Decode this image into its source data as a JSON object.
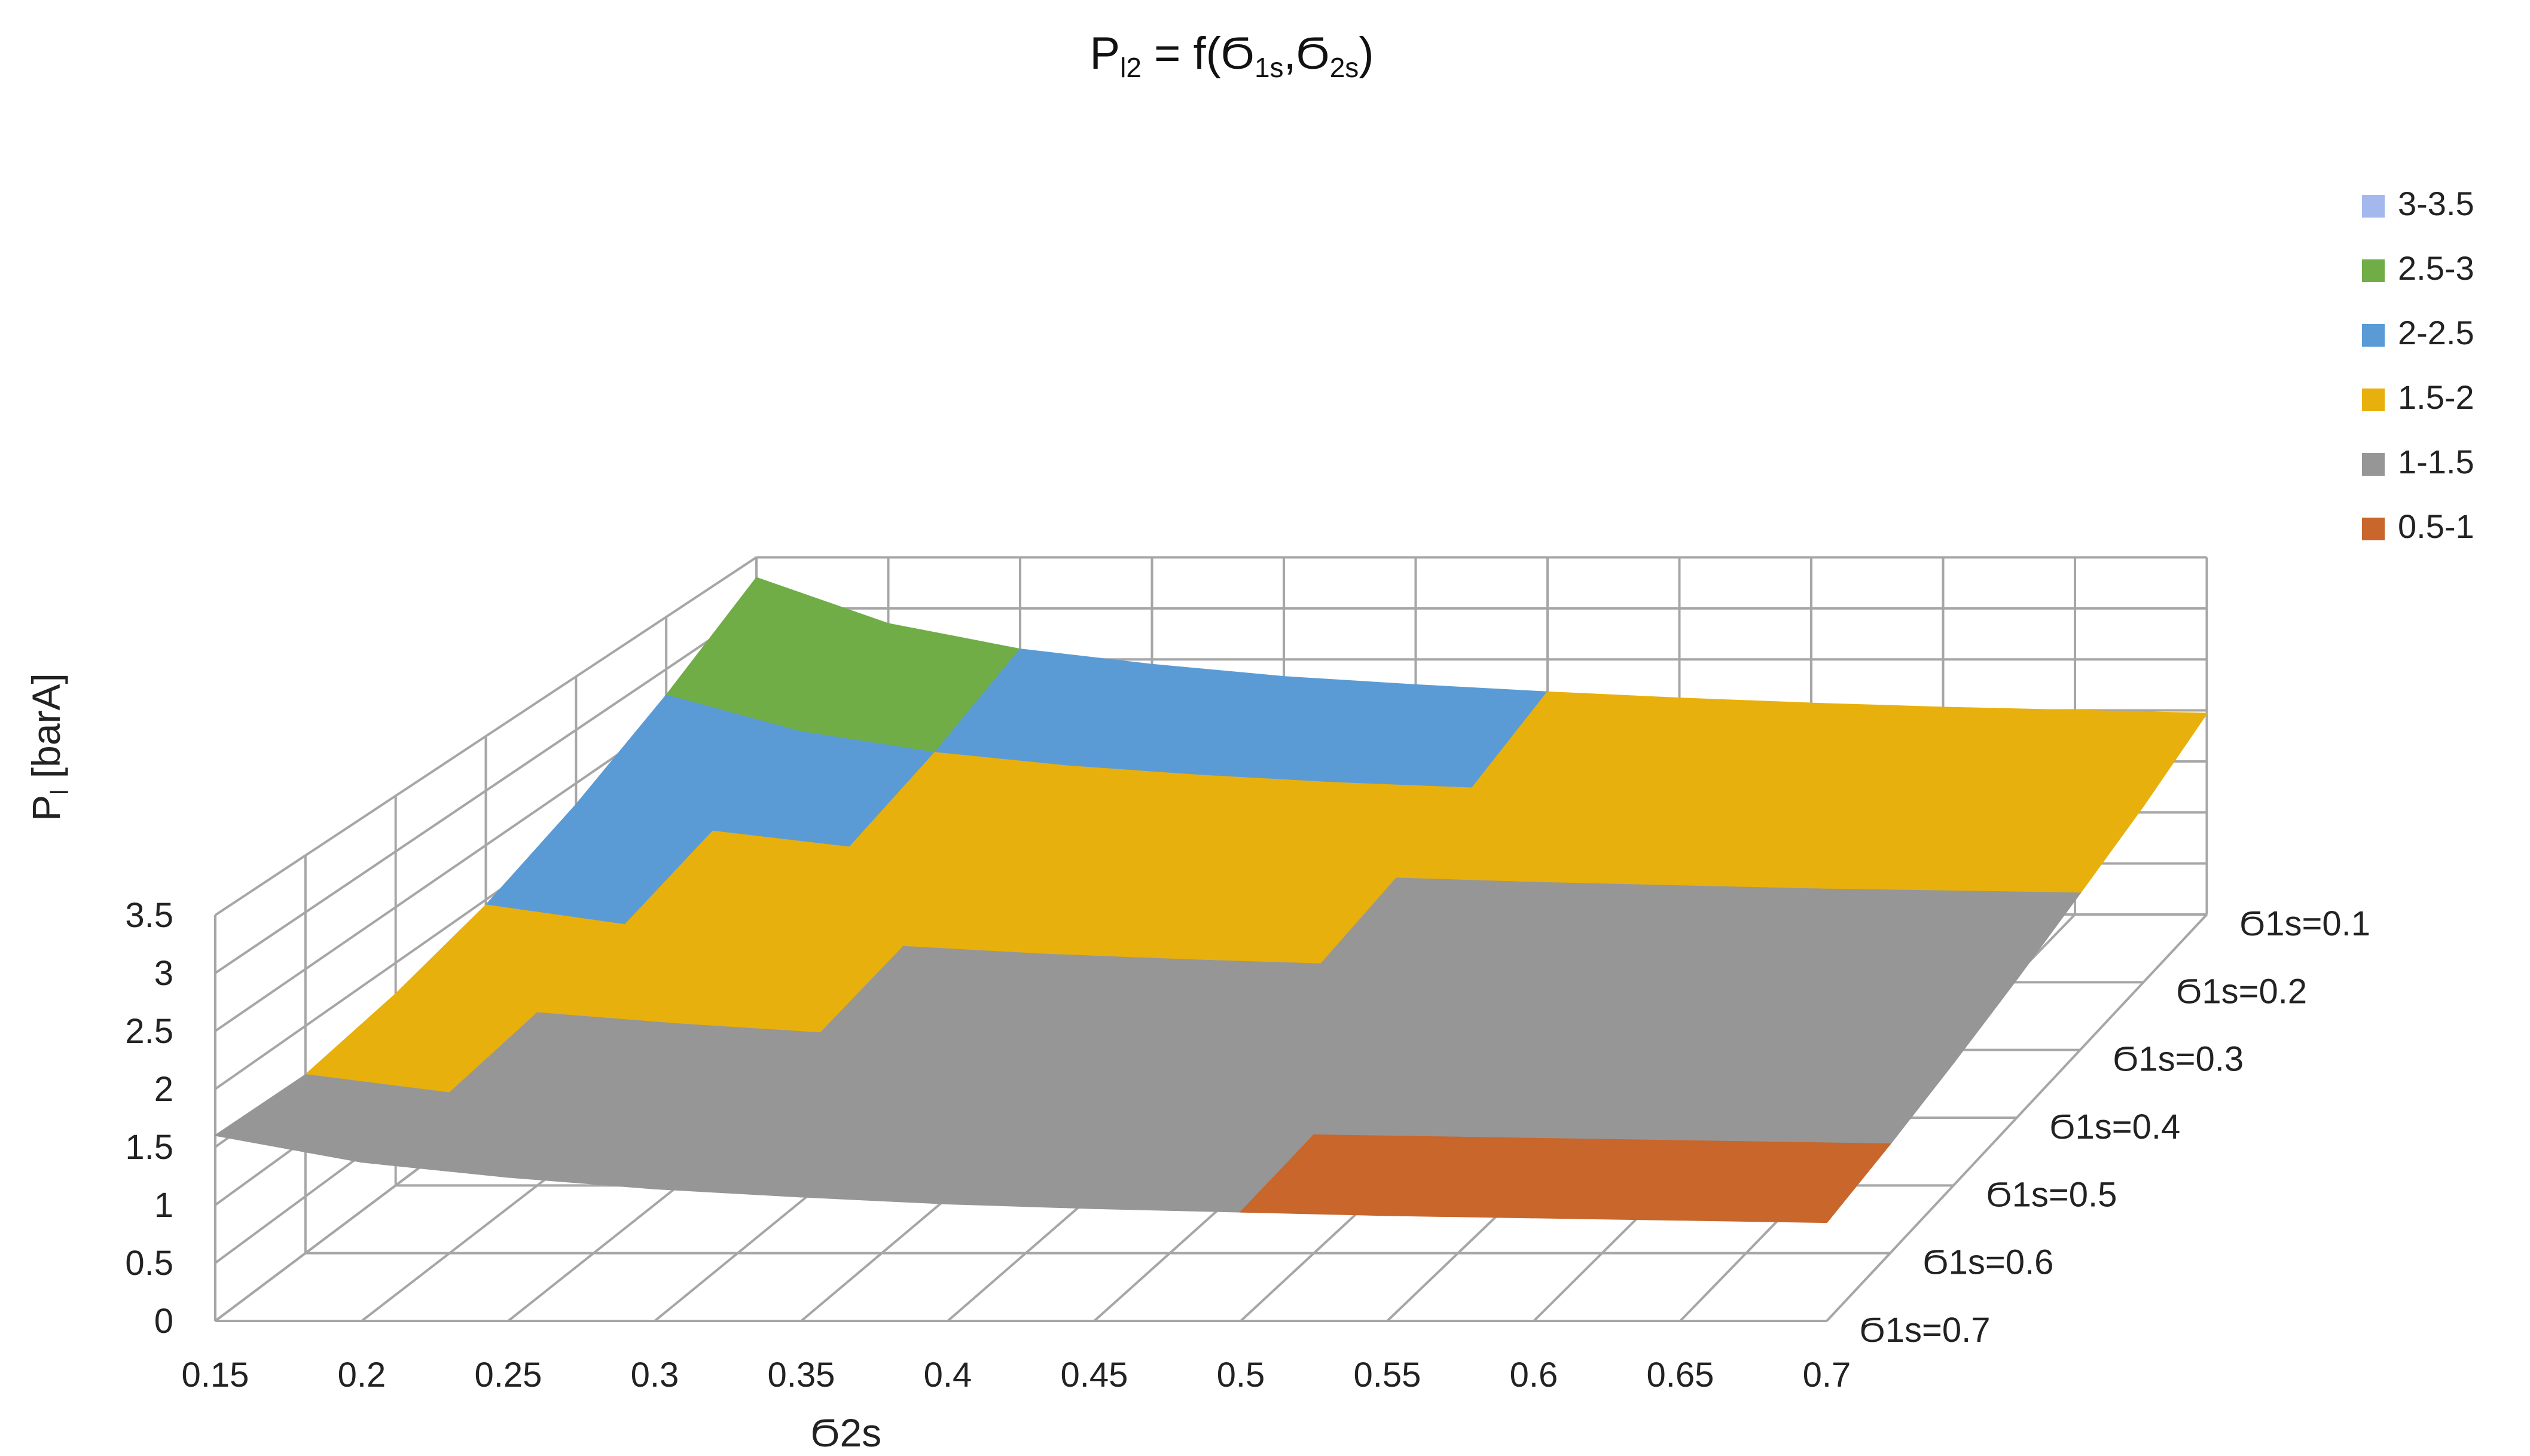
{
  "chart_data": {
    "type": "surface3d",
    "title": {
      "main": "P",
      "main_sub": "l2",
      "eq": " = f(",
      "s1": "Ϭ",
      "s1_sub": "1s",
      "comma": ",",
      "s2": "Ϭ",
      "s2_sub": "2s",
      "close": ")"
    },
    "xlabel": "Ϭ2s",
    "ylabel": {
      "main": "P",
      "sub": "l",
      "rest": " [barA]"
    },
    "x": [
      "0.15",
      "0.2",
      "0.25",
      "0.3",
      "0.35",
      "0.4",
      "0.45",
      "0.5",
      "0.55",
      "0.6",
      "0.65",
      "0.7"
    ],
    "z_ticks": [
      "0",
      "0.5",
      "1",
      "1.5",
      "2",
      "2.5",
      "3",
      "3.5"
    ],
    "zlim": [
      0,
      3.5
    ],
    "series": [
      "Ϭ1s=0.1",
      "Ϭ1s=0.2",
      "Ϭ1s=0.3",
      "Ϭ1s=0.4",
      "Ϭ1s=0.5",
      "Ϭ1s=0.6",
      "Ϭ1s=0.7"
    ],
    "values": [
      [
        3.3,
        2.85,
        2.6,
        2.45,
        2.33,
        2.25,
        2.18,
        2.12,
        2.07,
        2.03,
        2.0,
        1.97
      ],
      [
        2.75,
        2.4,
        2.2,
        2.07,
        1.98,
        1.91,
        1.86,
        1.81,
        1.77,
        1.74,
        1.71,
        1.69
      ],
      [
        2.3,
        2.05,
        1.9,
        1.8,
        1.72,
        1.66,
        1.61,
        1.57,
        1.54,
        1.51,
        1.49,
        1.47
      ],
      [
        1.95,
        1.77,
        1.65,
        1.57,
        1.5,
        1.45,
        1.41,
        1.37,
        1.34,
        1.31,
        1.29,
        1.27
      ],
      [
        1.72,
        1.55,
        1.45,
        1.37,
        1.31,
        1.26,
        1.22,
        1.19,
        1.16,
        1.14,
        1.12,
        1.1
      ],
      [
        1.57,
        1.41,
        1.3,
        1.22,
        1.16,
        1.11,
        1.07,
        1.04,
        1.02,
        1.0,
        0.98,
        0.96
      ],
      [
        1.6,
        1.37,
        1.24,
        1.14,
        1.07,
        1.01,
        0.97,
        0.94,
        0.91,
        0.89,
        0.87,
        0.85
      ]
    ],
    "legend": [
      {
        "label": "3-3.5",
        "min": 3.0,
        "max": 3.5,
        "color": "#a4b8ee"
      },
      {
        "label": "2.5-3",
        "min": 2.5,
        "max": 3.0,
        "color": "#70ad47"
      },
      {
        "label": "2-2.5",
        "min": 2.0,
        "max": 2.5,
        "color": "#5b9bd5"
      },
      {
        "label": "1.5-2",
        "min": 1.5,
        "max": 2.0,
        "color": "#e8b00c"
      },
      {
        "label": "1-1.5",
        "min": 1.0,
        "max": 1.5,
        "color": "#969696"
      },
      {
        "label": "0.5-1",
        "min": 0.5,
        "max": 1.0,
        "color": "#c8662b"
      }
    ],
    "legend_position": "right",
    "grid": true
  }
}
